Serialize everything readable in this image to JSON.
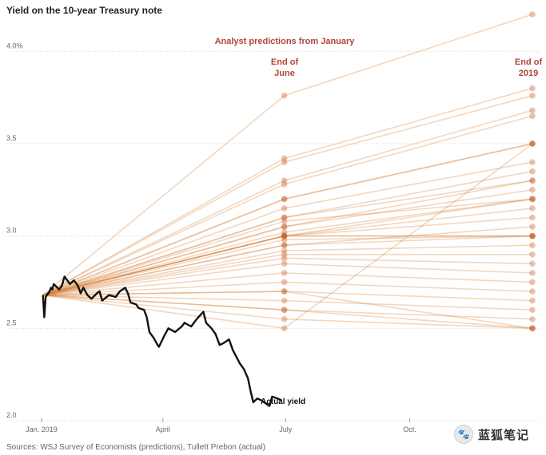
{
  "chart_data": {
    "type": "line",
    "title": "Yield on the 10-year Treasury note",
    "source": "Sources: WSJ Survey of Economists (predictions), Tullett Prebon (actual)",
    "annotations": {
      "header": "Analyst predictions from January",
      "june": [
        "End of",
        "June"
      ],
      "year_end": [
        "End of",
        "2019"
      ],
      "actual": "Actual yield"
    },
    "y_ticks": [
      {
        "value": 4.0,
        "label": "4.0%"
      },
      {
        "value": 3.5,
        "label": "3.5"
      },
      {
        "value": 3.0,
        "label": "3.0"
      },
      {
        "value": 2.5,
        "label": "2.5"
      },
      {
        "value": 2.0,
        "label": "2.0"
      }
    ],
    "x_ticks": [
      {
        "value": "2019-01-01",
        "label": "Jan. 2019"
      },
      {
        "value": "2019-04-01",
        "label": "April"
      },
      {
        "value": "2019-07-01",
        "label": "July"
      },
      {
        "value": "2019-10-01",
        "label": "Oct."
      }
    ],
    "ylim": [
      2.0,
      4.2
    ],
    "xlim": [
      "2019-01-01",
      "2019-12-31"
    ],
    "grid": true,
    "actual_yield": {
      "name": "Actual yield",
      "points": [
        [
          "2019-01-02",
          2.68
        ],
        [
          "2019-01-03",
          2.56
        ],
        [
          "2019-01-04",
          2.67
        ],
        [
          "2019-01-07",
          2.7
        ],
        [
          "2019-01-08",
          2.72
        ],
        [
          "2019-01-09",
          2.71
        ],
        [
          "2019-01-10",
          2.74
        ],
        [
          "2019-01-14",
          2.71
        ],
        [
          "2019-01-16",
          2.73
        ],
        [
          "2019-01-18",
          2.78
        ],
        [
          "2019-01-22",
          2.74
        ],
        [
          "2019-01-25",
          2.76
        ],
        [
          "2019-01-28",
          2.73
        ],
        [
          "2019-01-30",
          2.69
        ],
        [
          "2019-02-01",
          2.72
        ],
        [
          "2019-02-04",
          2.68
        ],
        [
          "2019-02-07",
          2.66
        ],
        [
          "2019-02-11",
          2.69
        ],
        [
          "2019-02-13",
          2.7
        ],
        [
          "2019-02-15",
          2.65
        ],
        [
          "2019-02-20",
          2.68
        ],
        [
          "2019-02-25",
          2.67
        ],
        [
          "2019-02-28",
          2.7
        ],
        [
          "2019-03-04",
          2.72
        ],
        [
          "2019-03-06",
          2.69
        ],
        [
          "2019-03-08",
          2.64
        ],
        [
          "2019-03-12",
          2.63
        ],
        [
          "2019-03-14",
          2.61
        ],
        [
          "2019-03-18",
          2.6
        ],
        [
          "2019-03-20",
          2.56
        ],
        [
          "2019-03-22",
          2.48
        ],
        [
          "2019-03-25",
          2.45
        ],
        [
          "2019-03-28",
          2.41
        ],
        [
          "2019-03-29",
          2.4
        ],
        [
          "2019-04-02",
          2.46
        ],
        [
          "2019-04-05",
          2.5
        ],
        [
          "2019-04-10",
          2.48
        ],
        [
          "2019-04-15",
          2.51
        ],
        [
          "2019-04-17",
          2.53
        ],
        [
          "2019-04-22",
          2.51
        ],
        [
          "2019-04-26",
          2.55
        ],
        [
          "2019-05-01",
          2.59
        ],
        [
          "2019-05-03",
          2.53
        ],
        [
          "2019-05-07",
          2.5
        ],
        [
          "2019-05-10",
          2.47
        ],
        [
          "2019-05-13",
          2.41
        ],
        [
          "2019-05-16",
          2.42
        ],
        [
          "2019-05-20",
          2.44
        ],
        [
          "2019-05-23",
          2.38
        ],
        [
          "2019-05-28",
          2.31
        ],
        [
          "2019-05-31",
          2.28
        ],
        [
          "2019-06-03",
          2.23
        ],
        [
          "2019-06-05",
          2.16
        ],
        [
          "2019-06-07",
          2.1
        ],
        [
          "2019-06-10",
          2.12
        ],
        [
          "2019-06-13",
          2.11
        ],
        [
          "2019-06-17",
          2.09
        ],
        [
          "2019-06-19",
          2.08
        ],
        [
          "2019-06-21",
          2.13
        ],
        [
          "2019-06-25",
          2.12
        ],
        [
          "2019-06-28",
          2.11
        ]
      ]
    },
    "forecasts": {
      "start": [
        "2019-01-02",
        2.68
      ],
      "june_date": "2019-06-30",
      "year_end_date": "2019-12-31",
      "pairs": [
        [
          3.76,
          4.2
        ],
        [
          3.42,
          3.8
        ],
        [
          3.4,
          3.76
        ],
        [
          3.3,
          3.68
        ],
        [
          3.28,
          3.65
        ],
        [
          3.2,
          3.5
        ],
        [
          3.2,
          3.5
        ],
        [
          3.15,
          3.4
        ],
        [
          3.1,
          3.35
        ],
        [
          3.1,
          3.3
        ],
        [
          3.05,
          3.3
        ],
        [
          3.05,
          3.25
        ],
        [
          3.02,
          3.2
        ],
        [
          3.0,
          3.2
        ],
        [
          3.0,
          3.15
        ],
        [
          3.0,
          3.1
        ],
        [
          3.0,
          3.0
        ],
        [
          3.0,
          3.0
        ],
        [
          2.95,
          3.0
        ],
        [
          2.95,
          3.05
        ],
        [
          2.92,
          2.95
        ],
        [
          2.9,
          2.9
        ],
        [
          2.88,
          2.85
        ],
        [
          2.85,
          2.8
        ],
        [
          2.8,
          2.75
        ],
        [
          2.75,
          2.7
        ],
        [
          2.7,
          2.65
        ],
        [
          2.65,
          2.6
        ],
        [
          2.6,
          2.55
        ],
        [
          2.6,
          2.5
        ],
        [
          2.55,
          2.5
        ],
        [
          2.5,
          3.5
        ],
        [
          2.7,
          2.5
        ],
        [
          2.98,
          3.0
        ],
        [
          3.08,
          3.2
        ]
      ]
    }
  },
  "watermark": {
    "icon": "paw-icon",
    "glyph": "🐾",
    "text": "蓝狐笔记"
  }
}
